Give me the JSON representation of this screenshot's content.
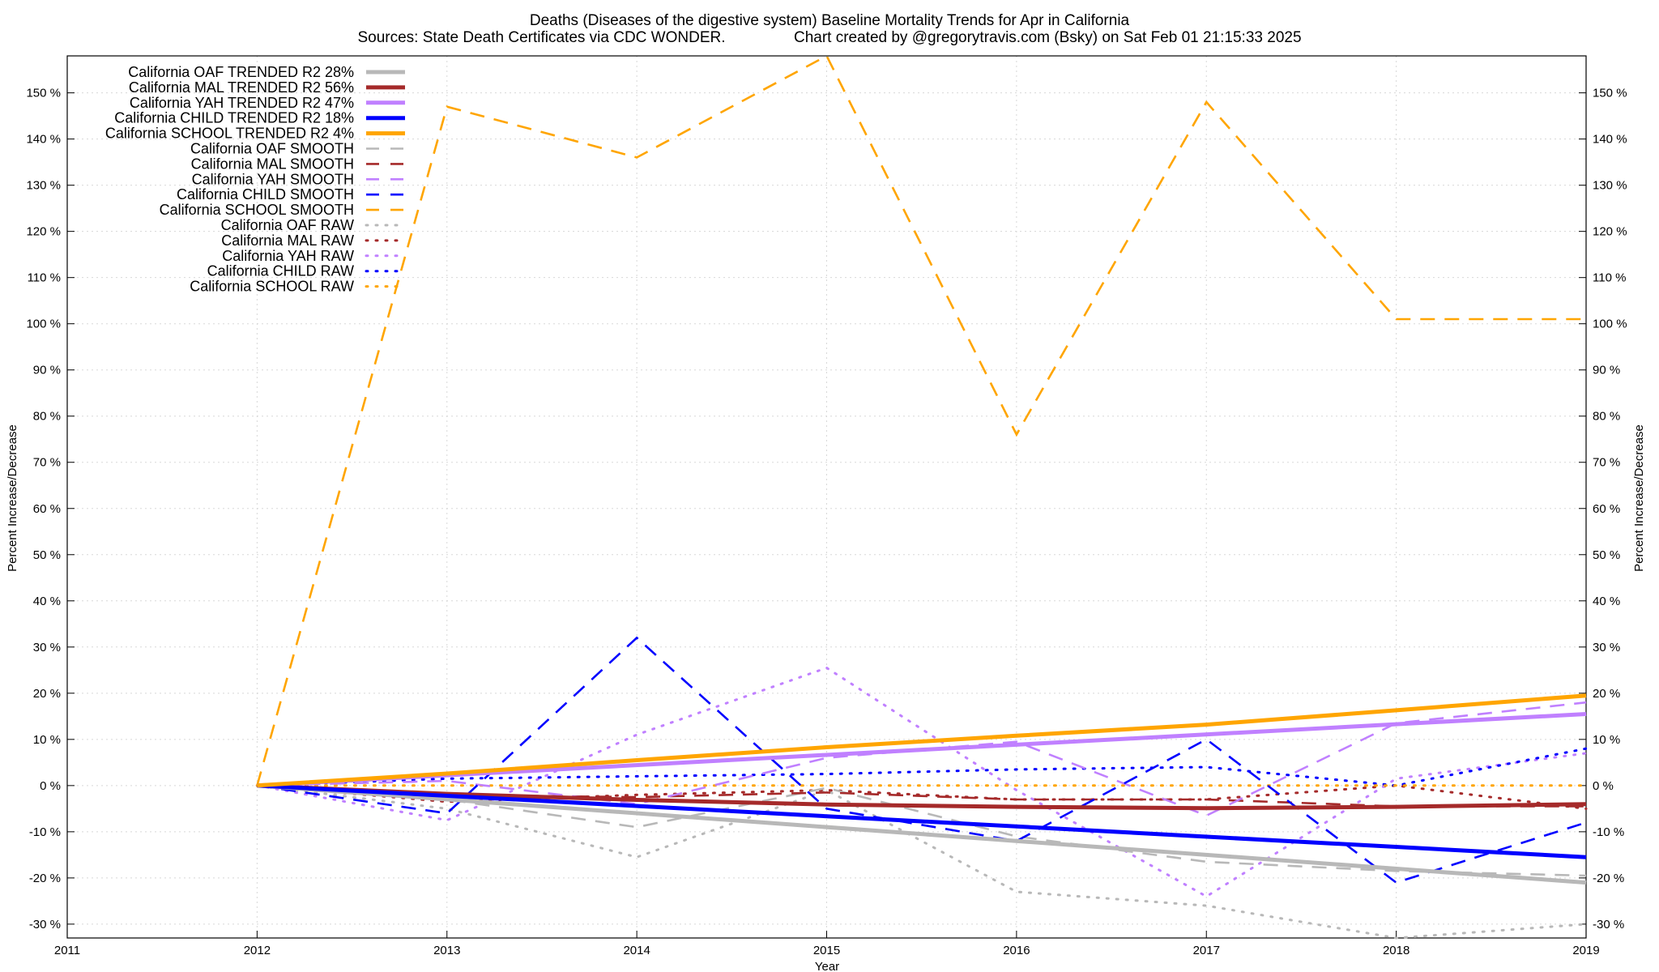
{
  "chart_data": {
    "type": "line",
    "title": "Deaths (Diseases of the digestive system)  Baseline Mortality Trends for Apr in California",
    "subtitle": "Sources: State Death Certificates via CDC WONDER.                Chart created by @gregorytravis.com (Bsky) on Sat Feb 01 21:15:33 2025",
    "xlabel": "Year",
    "ylabel": "Percent Increase/Decrease",
    "y2label": "Percent Increase/Decrease",
    "xlim": [
      2011,
      2019
    ],
    "ylim": [
      -33,
      158
    ],
    "x_ticks": [
      2011,
      2012,
      2013,
      2014,
      2015,
      2016,
      2017,
      2018,
      2019
    ],
    "x_tick_labels": [
      "2011",
      "2012",
      "2013",
      "2014",
      "2015",
      "2016",
      "2017",
      "2018",
      "2019"
    ],
    "y_ticks": [
      -30,
      -20,
      -10,
      0,
      10,
      20,
      30,
      40,
      50,
      60,
      70,
      80,
      90,
      100,
      110,
      120,
      130,
      140,
      150
    ],
    "y_tick_labels": [
      "-30 %",
      "-20 %",
      "-10 %",
      "0 %",
      "10 %",
      "20 %",
      "30 %",
      "40 %",
      "50 %",
      "60 %",
      "70 %",
      "80 %",
      "90 %",
      "100 %",
      "110 %",
      "120 %",
      "130 %",
      "140 %",
      "150 %"
    ],
    "grid": true,
    "legend_position": "top-left",
    "series": [
      {
        "name": "California OAF TRENDED R2  28%",
        "style": "solid",
        "color": "#b8b8b8",
        "x": [
          2012,
          2019
        ],
        "y": [
          0,
          -21
        ]
      },
      {
        "name": "California MAL TRENDED R2  56%",
        "style": "solid",
        "color": "#a52a2a",
        "x": [
          2012,
          2013,
          2014,
          2015,
          2016,
          2017,
          2018,
          2019
        ],
        "y": [
          0,
          -1.8,
          -3.1,
          -4.1,
          -4.6,
          -4.9,
          -4.6,
          -4.0
        ]
      },
      {
        "name": "California YAH TRENDED R2  47%",
        "style": "solid",
        "color": "#c080ff",
        "x": [
          2012,
          2019
        ],
        "y": [
          0,
          15.5
        ]
      },
      {
        "name": "California CHILD TRENDED R2  18%",
        "style": "solid",
        "color": "#0000ff",
        "x": [
          2012,
          2019
        ],
        "y": [
          0,
          -15.5
        ]
      },
      {
        "name": "California SCHOOL TRENDED R2   4%",
        "style": "solid",
        "color": "#ffa500",
        "x": [
          2012,
          2013,
          2014,
          2015,
          2016,
          2017,
          2018,
          2019
        ],
        "y": [
          0,
          2.6,
          5.5,
          8.3,
          10.8,
          13.2,
          16.3,
          19.5
        ]
      },
      {
        "name": "California OAF SMOOTH",
        "style": "dashed",
        "color": "#b8b8b8",
        "x": [
          2012,
          2013,
          2014,
          2015,
          2016,
          2017,
          2018,
          2019
        ],
        "y": [
          0,
          -3,
          -9,
          -0.5,
          -11,
          -16.5,
          -18.5,
          -19.5
        ]
      },
      {
        "name": "California MAL SMOOTH",
        "style": "dashed",
        "color": "#a52a2a",
        "x": [
          2012,
          2013,
          2014,
          2015,
          2016,
          2017,
          2018,
          2019
        ],
        "y": [
          0,
          -2,
          -2.5,
          -1.5,
          -3,
          -3,
          -4.5,
          -4.5
        ]
      },
      {
        "name": "California YAH SMOOTH",
        "style": "dashed",
        "color": "#c080ff",
        "x": [
          2012,
          2013,
          2014,
          2015,
          2016,
          2017,
          2018,
          2019
        ],
        "y": [
          0,
          1,
          -4,
          6,
          9.5,
          -6.5,
          13.5,
          18
        ]
      },
      {
        "name": "California CHILD SMOOTH",
        "style": "dashed",
        "color": "#0000ff",
        "x": [
          2012,
          2013,
          2014,
          2015,
          2016,
          2017,
          2018,
          2019
        ],
        "y": [
          0,
          -6,
          32,
          -5,
          -12,
          10,
          -21,
          -8
        ]
      },
      {
        "name": "California SCHOOL SMOOTH",
        "style": "dashed",
        "color": "#ffa500",
        "x": [
          2012,
          2013,
          2014,
          2015,
          2016,
          2017,
          2018,
          2019
        ],
        "y": [
          0,
          147,
          136,
          158,
          76,
          148,
          101,
          101
        ]
      },
      {
        "name": "California OAF RAW",
        "style": "dotted",
        "color": "#b8b8b8",
        "x": [
          2012,
          2013,
          2014,
          2015,
          2016,
          2017,
          2018,
          2019
        ],
        "y": [
          0,
          -5,
          -15.5,
          -1,
          -23,
          -26,
          -33,
          -30
        ]
      },
      {
        "name": "California MAL RAW",
        "style": "dotted",
        "color": "#a52a2a",
        "x": [
          2012,
          2013,
          2014,
          2015,
          2016,
          2017,
          2018,
          2019
        ],
        "y": [
          0,
          -3.5,
          -2,
          -1,
          -3,
          -3,
          0,
          -5
        ]
      },
      {
        "name": "California YAH RAW",
        "style": "dotted",
        "color": "#c080ff",
        "x": [
          2012,
          2013,
          2014,
          2015,
          2016,
          2017,
          2018,
          2019
        ],
        "y": [
          0,
          -7.5,
          11,
          25.5,
          -1,
          -24,
          1.5,
          7
        ]
      },
      {
        "name": "California CHILD RAW",
        "style": "dotted",
        "color": "#0000ff",
        "x": [
          2012,
          2013,
          2014,
          2015,
          2016,
          2017,
          2018,
          2019
        ],
        "y": [
          0,
          1.5,
          2,
          2.5,
          3.5,
          4,
          0,
          8
        ]
      },
      {
        "name": "California SCHOOL RAW",
        "style": "dotted",
        "color": "#ffa500",
        "x": [
          2012,
          2013,
          2014,
          2015,
          2016,
          2017,
          2018,
          2019
        ],
        "y": [
          0,
          0,
          0,
          0,
          0,
          0,
          0,
          0
        ]
      }
    ]
  }
}
